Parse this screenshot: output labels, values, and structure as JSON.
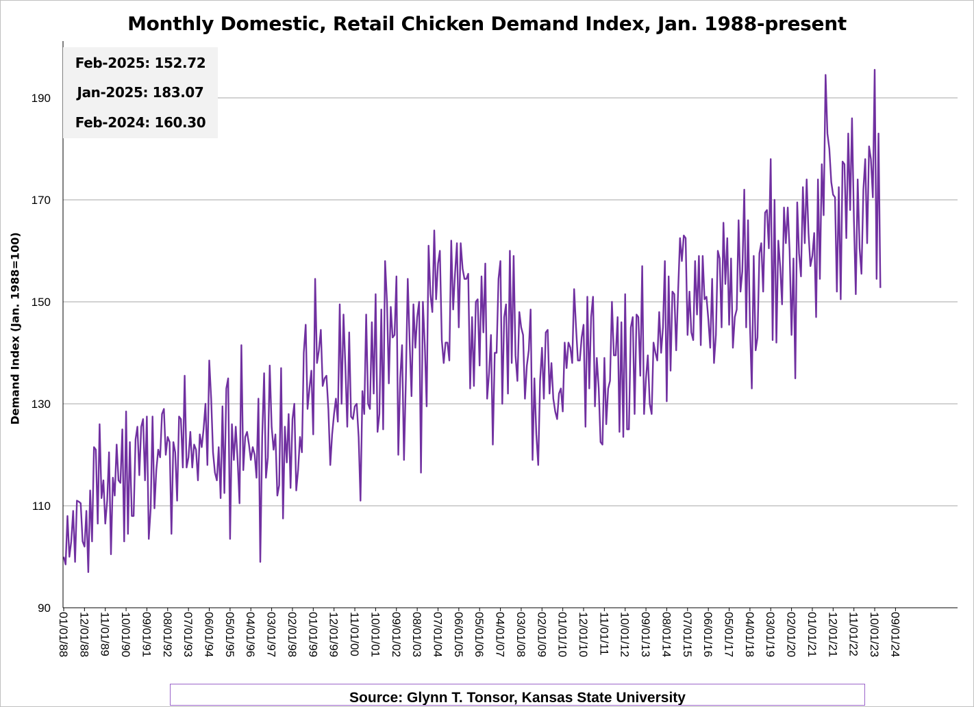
{
  "chart_data": {
    "type": "line",
    "title": "Monthly Domestic, Retail Chicken Demand Index, Jan. 1988-present",
    "ylabel": "Demand Index (Jan. 1988=100)",
    "xlabel": "",
    "ylim": [
      90,
      200
    ],
    "yticks": [
      90,
      110,
      130,
      150,
      170,
      190
    ],
    "grid": "horizontal",
    "series_color": "#7030a0",
    "x_tick_labels": [
      "01/01/88",
      "12/01/88",
      "11/01/89",
      "10/01/90",
      "09/01/91",
      "08/01/92",
      "07/01/93",
      "06/01/94",
      "05/01/95",
      "04/01/96",
      "03/01/97",
      "02/01/98",
      "01/01/99",
      "12/01/99",
      "11/01/00",
      "10/01/01",
      "09/01/02",
      "08/01/03",
      "07/01/04",
      "06/01/05",
      "05/01/06",
      "04/01/07",
      "03/01/08",
      "02/01/09",
      "01/01/10",
      "12/01/10",
      "11/01/11",
      "10/01/12",
      "09/01/13",
      "08/01/14",
      "07/01/15",
      "06/01/16",
      "05/01/17",
      "04/01/18",
      "03/01/19",
      "02/01/20",
      "01/01/21",
      "12/01/21",
      "11/01/22",
      "10/01/23",
      "09/01/24"
    ],
    "x_start": "1988-01",
    "series": [
      {
        "values": [
          100,
          98.5,
          108,
          100,
          103,
          109,
          99,
          111,
          110.8,
          110.5,
          103,
          102,
          109,
          97,
          113,
          103,
          121.5,
          121,
          106.5,
          126,
          111.5,
          115,
          106.5,
          111,
          120.5,
          100.5,
          115.5,
          112,
          122,
          115,
          114.5,
          125,
          103,
          128.5,
          104.5,
          122.5,
          108,
          108,
          123,
          125.5,
          116,
          125.5,
          127,
          115,
          127.5,
          103.5,
          109.5,
          127.5,
          109.5,
          117,
          121,
          119.5,
          128,
          129,
          120,
          123.5,
          122.5,
          104.5,
          122.5,
          120.5,
          111,
          127.5,
          127,
          117.5,
          135.5,
          117.5,
          119.5,
          124.5,
          117.5,
          122,
          121,
          115,
          124,
          121.5,
          125,
          130,
          118,
          138.5,
          131,
          120.5,
          116.5,
          115,
          121.5,
          111.5,
          129.5,
          112.5,
          133,
          135,
          103.5,
          126,
          119,
          125.5,
          119,
          110.5,
          141.5,
          117,
          123.5,
          124.5,
          122,
          119,
          121.5,
          120,
          115.5,
          131,
          99,
          123.5,
          136,
          115.5,
          119.5,
          137.5,
          125.5,
          121,
          124,
          112,
          114,
          137,
          107.5,
          125.5,
          118.5,
          128,
          113.5,
          127,
          130,
          113,
          117,
          123.5,
          120.5,
          140,
          145.5,
          129,
          133,
          136.5,
          124,
          154.5,
          138,
          140.5,
          144.5,
          133.5,
          135,
          135.5,
          129,
          118,
          124,
          128,
          131,
          126.5,
          149.5,
          130,
          147.5,
          137.5,
          125.5,
          144,
          127.5,
          127,
          129.5,
          130,
          123.5,
          111,
          132.5,
          128,
          147.5,
          130,
          129,
          146,
          132,
          151.5,
          124.5,
          128,
          148.5,
          125,
          158,
          150,
          134,
          149,
          143,
          143.5,
          155,
          120,
          135,
          141.5,
          119,
          135,
          154.5,
          142,
          131.5,
          149.5,
          141,
          147,
          150,
          116.5,
          150,
          141.5,
          129.5,
          161,
          151.5,
          148,
          164,
          150.5,
          157.5,
          160,
          142.5,
          138,
          142,
          142,
          138.5,
          162,
          148.5,
          155.5,
          161.5,
          145,
          161.5,
          156.5,
          154.5,
          154.5,
          155.5,
          133,
          147,
          133.5,
          150,
          150.5,
          137.5,
          155,
          144,
          157.5,
          131,
          136,
          143.5,
          122,
          140,
          140,
          154.5,
          158,
          130,
          147,
          149.5,
          132,
          160,
          138,
          159,
          139.5,
          134.5,
          148,
          145,
          143.5,
          131,
          137.5,
          140.5,
          148.5,
          119,
          135,
          124,
          118,
          134.5,
          141,
          131,
          144,
          144.5,
          132,
          138,
          131,
          128.5,
          127,
          132,
          133,
          128.5,
          142,
          137,
          142,
          141,
          138,
          152.5,
          145,
          138.5,
          138.5,
          143,
          145.5,
          125.5,
          151,
          133,
          147,
          151,
          129.5,
          139,
          133,
          122.5,
          122,
          139,
          126,
          133,
          134.5,
          150,
          139.5,
          139.5,
          147,
          124.5,
          146,
          123.5,
          151.5,
          125,
          125,
          145,
          147,
          128,
          147.5,
          147,
          135.5,
          157,
          128,
          135,
          139.5,
          130,
          128,
          142,
          140,
          138.5,
          148,
          140,
          145,
          158,
          130.5,
          155,
          136.5,
          152,
          151.5,
          140.5,
          152,
          162.5,
          158,
          163,
          162.5,
          143.5,
          152,
          144,
          142.5,
          158,
          147.5,
          159,
          141.5,
          159,
          150.5,
          151,
          146.5,
          141,
          154.5,
          138,
          143.5,
          160,
          158.5,
          145,
          165.5,
          153.5,
          162.5,
          145.5,
          158.5,
          141,
          147,
          148.5,
          166,
          152,
          156,
          172,
          145,
          166,
          145.5,
          133,
          159,
          140.5,
          143,
          159.5,
          161.5,
          152,
          167.5,
          168,
          160.5,
          178,
          142.5,
          170,
          142,
          162,
          157,
          149.5,
          168.5,
          161.5,
          168.5,
          160,
          143.5,
          158.5,
          135,
          169.5,
          159.5,
          155,
          172.5,
          161.5,
          174,
          163.5,
          157,
          159,
          163.5,
          147,
          174,
          154.5,
          177,
          167,
          194.5,
          183,
          180,
          173.5,
          171,
          170.5,
          152,
          172.5,
          150.5,
          177.5,
          177,
          162.5,
          183,
          168,
          186,
          166,
          151.5,
          174,
          160.5,
          155.5,
          172,
          178,
          161.5,
          180.5,
          178,
          170.5,
          195.5,
          154.5,
          183,
          152.72
        ]
      }
    ]
  },
  "stats": [
    {
      "label": "Feb-2025:",
      "value": "152.72"
    },
    {
      "label": "Jan-2025:",
      "value": "183.07"
    },
    {
      "label": "Feb-2024:",
      "value": "160.30"
    }
  ],
  "source": "Source: Glynn T. Tonsor, Kansas State University"
}
